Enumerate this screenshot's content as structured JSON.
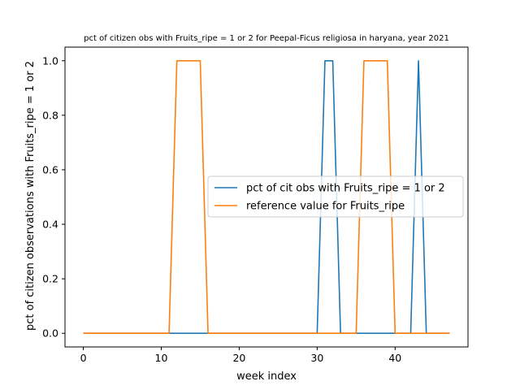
{
  "chart_data": {
    "type": "line",
    "title": "pct of citizen obs with Fruits_ripe = 1 or 2 for Peepal-Ficus religiosa in haryana, year 2021",
    "xlabel": "week index",
    "ylabel": "pct of citizen observations with Fruits_ripe = 1 or 2",
    "xlim": [
      -2.35,
      49.35
    ],
    "ylim": [
      -0.05,
      1.05
    ],
    "xticks": [
      0,
      10,
      20,
      30,
      40
    ],
    "yticks": [
      0.0,
      0.2,
      0.4,
      0.6,
      0.8,
      1.0
    ],
    "xtick_labels": [
      "0",
      "10",
      "20",
      "30",
      "40"
    ],
    "ytick_labels": [
      "0.0",
      "0.2",
      "0.4",
      "0.6",
      "0.8",
      "1.0"
    ],
    "grid": false,
    "legend_position": "center-right",
    "x": [
      0,
      1,
      2,
      3,
      4,
      5,
      6,
      7,
      8,
      9,
      10,
      11,
      12,
      13,
      14,
      15,
      16,
      17,
      18,
      19,
      20,
      21,
      22,
      23,
      24,
      25,
      26,
      27,
      28,
      29,
      30,
      31,
      32,
      33,
      34,
      35,
      36,
      37,
      38,
      39,
      40,
      41,
      42,
      43,
      44,
      45,
      46,
      47
    ],
    "series": [
      {
        "name": "pct of cit obs with Fruits_ripe = 1 or 2",
        "color": "#1f77b4",
        "values": [
          0,
          0,
          0,
          0,
          0,
          0,
          0,
          0,
          0,
          0,
          0,
          0,
          0,
          0,
          0,
          0,
          0,
          0,
          0,
          0,
          0,
          0,
          0,
          0,
          0,
          0,
          0,
          0,
          0,
          0,
          0,
          1,
          1,
          0,
          0,
          0,
          0,
          0,
          0,
          0,
          0,
          0,
          0,
          1,
          0,
          0,
          0,
          0
        ]
      },
      {
        "name": "reference value for Fruits_ripe",
        "color": "#ff7f0e",
        "values": [
          0,
          0,
          0,
          0,
          0,
          0,
          0,
          0,
          0,
          0,
          0,
          0,
          1,
          1,
          1,
          1,
          0,
          0,
          0,
          0,
          0,
          0,
          0,
          0,
          0,
          0,
          0,
          0,
          0,
          0,
          0,
          0,
          0,
          0,
          0,
          0,
          1,
          1,
          1,
          1,
          0,
          0,
          0,
          0,
          0,
          0,
          0,
          0
        ]
      }
    ]
  }
}
